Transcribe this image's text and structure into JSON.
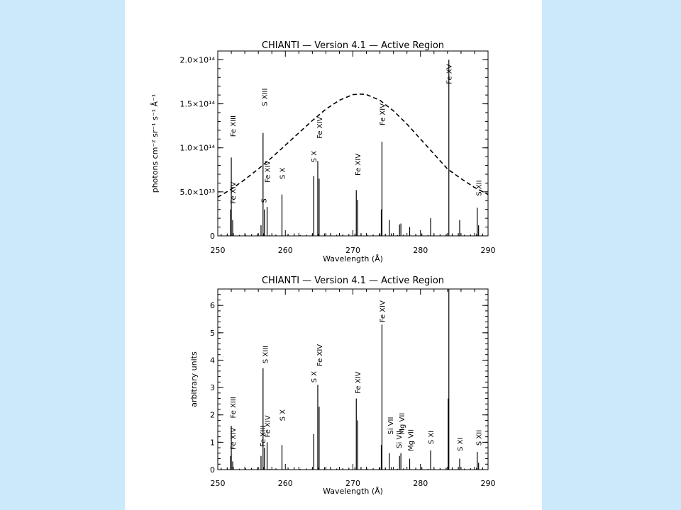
{
  "colors": {
    "background": "#cce9fb",
    "panel": "#ffffff",
    "ink": "#000000"
  },
  "chart_data": [
    {
      "type": "line",
      "title": "CHIANTI — Version 4.1 — Active Region",
      "xlabel": "Wavelength (Å)",
      "ylabel": "photons cm⁻² sr⁻¹ s⁻¹ Å⁻¹",
      "xlim": [
        250,
        290
      ],
      "ylim": [
        0,
        210000000000000.0
      ],
      "x_ticks": [
        "250",
        "260",
        "270",
        "280",
        "290"
      ],
      "x_tick_values": [
        250,
        260,
        270,
        280,
        290
      ],
      "y_ticks": [
        "0",
        "5.0×10¹³",
        "1.0×10¹⁴",
        "1.5×10¹⁴",
        "2.0×10¹⁴"
      ],
      "y_tick_values": [
        0,
        50000000000000.0,
        100000000000000.0,
        150000000000000.0,
        200000000000000.0
      ],
      "spectrum": {
        "x": [
          251.9,
          252.0,
          252.2,
          256.4,
          256.7,
          256.9,
          257.3,
          259.5,
          264.2,
          264.8,
          265.0,
          270.5,
          270.7,
          274.2,
          274.3,
          275.4,
          276.9,
          277.1,
          278.4,
          281.5,
          284.2,
          285.8,
          288.4,
          288.6
        ],
        "y": [
          30000000000000.0,
          89000000000000.0,
          18000000000000.0,
          12000000000000.0,
          117000000000000.0,
          30000000000000.0,
          33000000000000.0,
          47000000000000.0,
          68000000000000.0,
          85000000000000.0,
          65000000000000.0,
          52000000000000.0,
          41000000000000.0,
          30000000000000.0,
          107000000000000.0,
          18000000000000.0,
          13000000000000.0,
          14000000000000.0,
          10000000000000.0,
          20000000000000.0,
          200000000000000.0,
          18000000000000.0,
          32000000000000.0,
          12000000000000.0
        ]
      },
      "envelope": {
        "style": "dashed",
        "x": [
          250,
          252,
          254,
          256,
          258,
          260,
          262,
          264,
          266,
          268,
          270,
          271.3,
          272,
          274,
          276,
          278,
          280,
          282,
          284,
          286,
          288,
          290
        ],
        "y": [
          44000000000000.0,
          53000000000000.0,
          64000000000000.0,
          76000000000000.0,
          89000000000000.0,
          103000000000000.0,
          117000000000000.0,
          131000000000000.0,
          144000000000000.0,
          154000000000000.0,
          160500000000000.0,
          161000000000000.0,
          160500000000000.0,
          154000000000000.0,
          142000000000000.0,
          127000000000000.0,
          110000000000000.0,
          93000000000000.0,
          76000000000000.0,
          65000000000000.0,
          55000000000000.0,
          47000000000000.0
        ]
      },
      "annotations": [
        {
          "text": "Fe XIV",
          "x": 252.3,
          "y": 34000000000000.0
        },
        {
          "text": "Fe XIII",
          "x": 252.3,
          "y": 110000000000000.0
        },
        {
          "text": "S XIII",
          "x": 257.0,
          "y": 145000000000000.0
        },
        {
          "text": "S",
          "x": 256.9,
          "y": 35000000000000.0
        },
        {
          "text": "Fe XIV",
          "x": 257.4,
          "y": 58000000000000.0
        },
        {
          "text": "S X",
          "x": 259.6,
          "y": 62000000000000.0
        },
        {
          "text": "S X",
          "x": 264.3,
          "y": 81000000000000.0
        },
        {
          "text": "Fe XIV",
          "x": 265.1,
          "y": 108000000000000.0
        },
        {
          "text": "Fe XIV",
          "x": 270.8,
          "y": 66000000000000.0
        },
        {
          "text": "Fe XIV",
          "x": 274.4,
          "y": 123000000000000.0
        },
        {
          "text": "Fe XV",
          "x": 284.3,
          "y": 170000000000000.0
        },
        {
          "text": "S XII",
          "x": 288.7,
          "y": 43000000000000.0
        }
      ]
    },
    {
      "type": "line",
      "title": "CHIANTI — Version 4.1 — Active Region",
      "xlabel": "Wavelength (Å)",
      "ylabel": "arbitrary units",
      "xlim": [
        250,
        290
      ],
      "ylim": [
        0,
        6.6
      ],
      "x_ticks": [
        "250",
        "260",
        "270",
        "280",
        "290"
      ],
      "x_tick_values": [
        250,
        260,
        270,
        280,
        290
      ],
      "y_ticks": [
        "0",
        "1",
        "2",
        "3",
        "4",
        "5",
        "6"
      ],
      "y_tick_values": [
        0,
        1,
        2,
        3,
        4,
        5,
        6
      ],
      "spectrum": {
        "x": [
          251.9,
          252.0,
          252.2,
          256.4,
          256.7,
          256.9,
          257.3,
          259.5,
          264.2,
          264.8,
          265.0,
          270.5,
          270.7,
          274.2,
          274.3,
          275.4,
          276.9,
          277.1,
          278.4,
          281.5,
          284.1,
          284.2,
          285.8,
          288.4,
          288.6
        ],
        "y": [
          0.5,
          1.6,
          0.3,
          0.5,
          3.7,
          0.8,
          1.0,
          0.9,
          1.3,
          3.1,
          2.3,
          2.6,
          1.8,
          0.9,
          5.3,
          0.6,
          0.5,
          0.6,
          0.4,
          0.7,
          2.6,
          6.6,
          0.4,
          0.65,
          0.25
        ]
      },
      "annotations": [
        {
          "text": "Fe XIV",
          "x": 252.3,
          "y": 0.65
        },
        {
          "text": "Fe XIII",
          "x": 252.3,
          "y": 1.8
        },
        {
          "text": "Fe XIII",
          "x": 256.7,
          "y": 0.75
        },
        {
          "text": "S XIII",
          "x": 257.1,
          "y": 3.8
        },
        {
          "text": "Fe XIV",
          "x": 257.4,
          "y": 1.1
        },
        {
          "text": "S X",
          "x": 259.6,
          "y": 1.7
        },
        {
          "text": "S X",
          "x": 264.3,
          "y": 3.1
        },
        {
          "text": "Fe XIV",
          "x": 265.1,
          "y": 3.7
        },
        {
          "text": "Fe XIV",
          "x": 270.8,
          "y": 2.7
        },
        {
          "text": "Fe XIV",
          "x": 274.4,
          "y": 5.3
        },
        {
          "text": "Si VII",
          "x": 275.6,
          "y": 1.2
        },
        {
          "text": "Si VII",
          "x": 276.9,
          "y": 0.7
        },
        {
          "text": "Mg VII",
          "x": 277.3,
          "y": 1.2
        },
        {
          "text": "Mg VII",
          "x": 278.6,
          "y": 0.6
        },
        {
          "text": "S XI",
          "x": 281.6,
          "y": 0.85
        },
        {
          "text": "S XI",
          "x": 285.9,
          "y": 0.6
        },
        {
          "text": "S XII",
          "x": 288.7,
          "y": 0.8
        }
      ]
    }
  ]
}
